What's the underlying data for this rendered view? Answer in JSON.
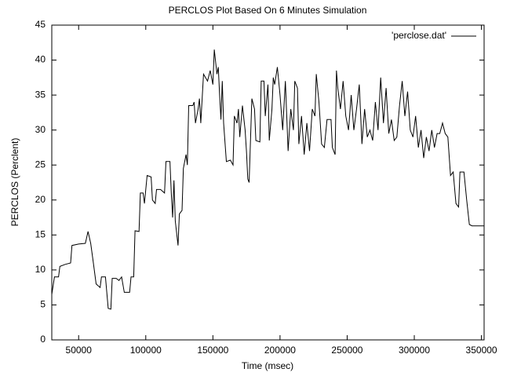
{
  "chart_data": {
    "type": "line",
    "title": "PERCLOS Plot Based On 6 Minutes Simulation",
    "x_label": "Time (msec)",
    "y_label": "PERCLOS (Perclent)",
    "xlim": [
      30000,
      352000
    ],
    "ylim": [
      0,
      45
    ],
    "xticks": [
      50000,
      100000,
      150000,
      200000,
      250000,
      300000,
      350000
    ],
    "yticks": [
      0,
      5,
      10,
      15,
      20,
      25,
      30,
      35,
      40,
      45
    ],
    "legend": "top-right",
    "x": [
      30000,
      32000,
      35000,
      36000,
      40000,
      44000,
      45000,
      50000,
      55000,
      57000,
      59000,
      61000,
      63000,
      66000,
      67000,
      70000,
      72000,
      74000,
      75000,
      78000,
      80000,
      82000,
      84000,
      88000,
      89000,
      91000,
      92000,
      95000,
      96000,
      98000,
      99000,
      101000,
      104000,
      105000,
      107000,
      108000,
      111000,
      114000,
      115000,
      118000,
      119000,
      120000,
      121000,
      122000,
      124000,
      125000,
      127000,
      128000,
      130000,
      131000,
      132000,
      135000,
      136000,
      137000,
      139000,
      140000,
      141000,
      143000,
      146000,
      148000,
      150000,
      151000,
      153000,
      154000,
      155000,
      156000,
      157000,
      158000,
      160000,
      163000,
      165000,
      166000,
      168000,
      169000,
      170000,
      172000,
      174000,
      175000,
      176000,
      177000,
      179000,
      181000,
      182000,
      185000,
      186000,
      188000,
      189000,
      191000,
      192000,
      194000,
      195000,
      196000,
      198000,
      200000,
      202000,
      204000,
      206000,
      208000,
      210000,
      211000,
      213000,
      214000,
      216000,
      218000,
      220000,
      222000,
      224000,
      226000,
      227000,
      229000,
      231000,
      233000,
      235000,
      238000,
      239000,
      241000,
      242000,
      243000,
      245000,
      247000,
      249000,
      251000,
      253000,
      255000,
      257000,
      259000,
      261000,
      263000,
      265000,
      267000,
      269000,
      271000,
      273000,
      275000,
      277000,
      279000,
      281000,
      283000,
      285000,
      287000,
      289000,
      291000,
      293000,
      295000,
      297000,
      299000,
      301000,
      303000,
      305000,
      307000,
      309000,
      311000,
      313000,
      315000,
      317000,
      319000,
      321000,
      323000,
      325000,
      327000,
      329000,
      331000,
      333000,
      334000,
      337000,
      339000,
      341000,
      343000,
      347000,
      352000
    ],
    "series": [
      {
        "name": "'perclose.dat'",
        "color": "#000000",
        "values": [
          6.5,
          9,
          9,
          10.5,
          10.8,
          11,
          13.5,
          13.7,
          13.8,
          15.5,
          13.8,
          11,
          8,
          7.5,
          9,
          9,
          4.5,
          4.4,
          8.8,
          8.8,
          8.5,
          9,
          6.8,
          6.8,
          9,
          9,
          15.6,
          15.5,
          21,
          21,
          19.5,
          23.5,
          23.3,
          20,
          19.5,
          21.5,
          21.5,
          21,
          25.5,
          25.5,
          21,
          17.5,
          22.8,
          17,
          13.5,
          18,
          18.5,
          24.5,
          26.5,
          25,
          33.5,
          33.5,
          34,
          31,
          33,
          34.5,
          31,
          38,
          37,
          38.5,
          36.5,
          41.5,
          38,
          39,
          35,
          31.5,
          37,
          31,
          25.5,
          25.7,
          25,
          32,
          31,
          33,
          29,
          33.5,
          30,
          27,
          23,
          22.5,
          34.5,
          33,
          28.5,
          28.3,
          37,
          37,
          32,
          36.5,
          28.5,
          33,
          37.5,
          36.5,
          39,
          35,
          30,
          37,
          27,
          33,
          30,
          37,
          36,
          28,
          32,
          26.5,
          31,
          27,
          33,
          32,
          38,
          34,
          28,
          27.5,
          31.5,
          31.5,
          27.5,
          26.5,
          38.5,
          36,
          33,
          37,
          32,
          30,
          35,
          30,
          33,
          36.5,
          28,
          33,
          29,
          30,
          28.5,
          34,
          30,
          37.5,
          31,
          36,
          29.5,
          31.5,
          28.5,
          29,
          33.5,
          37,
          32,
          35.5,
          30,
          29,
          32,
          27.5,
          30,
          26,
          29,
          27,
          30,
          27.5,
          29.5,
          29.5,
          31,
          29.5,
          29,
          23.5,
          24,
          19.5,
          19,
          24,
          24,
          20,
          16.5,
          16.3,
          16.3,
          16.3
        ]
      }
    ]
  }
}
